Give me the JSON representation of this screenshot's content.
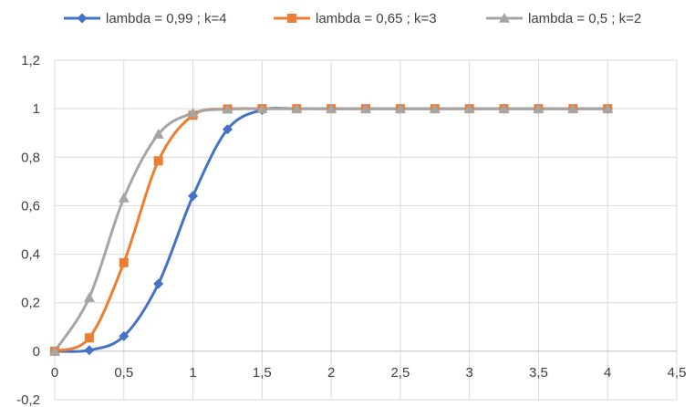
{
  "chart_data": {
    "type": "line",
    "title": "",
    "xlabel": "",
    "ylabel": "",
    "xlim": [
      0,
      4.5
    ],
    "ylim": [
      -0.2,
      1.2
    ],
    "x_ticks": [
      "0",
      "0,5",
      "1",
      "1,5",
      "2",
      "2,5",
      "3",
      "3,5",
      "4",
      "4,5"
    ],
    "y_ticks": [
      "-0,2",
      "0",
      "0,2",
      "0,4",
      "0,6",
      "0,8",
      "1",
      "1,2"
    ],
    "grid": "vertical and horizontal",
    "legend_position": "top",
    "x": [
      0,
      0.25,
      0.5,
      0.75,
      1,
      1.25,
      1.5,
      1.75,
      2,
      2.25,
      2.5,
      2.75,
      3,
      3.25,
      3.5,
      3.75,
      4
    ],
    "series": [
      {
        "name": "lambda = 0,99 ; k=4",
        "color": "#4472c4",
        "marker": "diamond",
        "values": [
          0,
          0.004,
          0.062,
          0.278,
          0.64,
          0.915,
          0.995,
          1,
          1,
          1,
          1,
          1,
          1,
          1,
          1,
          1,
          1
        ]
      },
      {
        "name": "lambda = 0,65 ; k=3",
        "color": "#ed7d31",
        "marker": "square",
        "values": [
          0,
          0.055,
          0.365,
          0.785,
          0.973,
          0.999,
          1,
          1,
          1,
          1,
          1,
          1,
          1,
          1,
          1,
          1,
          1
        ]
      },
      {
        "name": "lambda = 0,5 ; k=2",
        "color": "#a5a5a5",
        "marker": "triangle",
        "values": [
          0,
          0.221,
          0.632,
          0.895,
          0.982,
          0.998,
          1,
          1,
          1,
          1,
          1,
          1,
          1,
          1,
          1,
          1,
          1
        ]
      }
    ]
  }
}
